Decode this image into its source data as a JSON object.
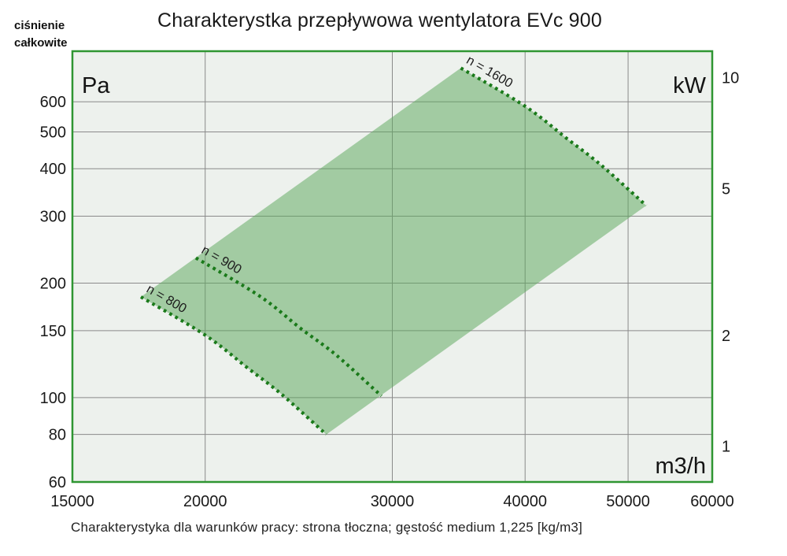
{
  "page": {
    "axis_caption": {
      "line1": "ciśnienie",
      "line2": "całkowite"
    },
    "title": "Charakterystka przepływowa wentylatora EVc 900",
    "footer_note": "Charakterystyka dla warunków pracy: strona tłoczna; gęstość medium 1,225 [kg/m3]"
  },
  "chart_data": {
    "type": "area",
    "title": "Charakterystka przepływowa wentylatora EVc 900",
    "x_axis": {
      "label": "m3/h",
      "scale": "log",
      "min": 15000,
      "max": 60000,
      "ticks": [
        15000,
        20000,
        30000,
        40000,
        50000,
        60000
      ],
      "gridlines": [
        20000,
        30000,
        40000,
        50000
      ]
    },
    "y_axis_left": {
      "label": "Pa",
      "scale": "log",
      "min": 60,
      "max": 815,
      "ticks": [
        600,
        500,
        400,
        300,
        200,
        150,
        100,
        80,
        60
      ],
      "gridlines": [
        600,
        500,
        400,
        300,
        200,
        150,
        100,
        80
      ]
    },
    "y_axis_right": {
      "label": "kW",
      "scale": "log",
      "min": 0.8,
      "max": 11.8,
      "ticks": [
        10,
        5,
        2,
        1
      ]
    },
    "series": [
      {
        "name": "n = 800",
        "points": [
          [
            17400,
            184
          ],
          [
            20000,
            146
          ],
          [
            21900,
            120
          ],
          [
            23600,
            102
          ],
          [
            26000,
            80
          ]
        ]
      },
      {
        "name": "n = 900",
        "points": [
          [
            19600,
            233
          ],
          [
            22500,
            185
          ],
          [
            24600,
            152
          ],
          [
            26600,
            129
          ],
          [
            29300,
            101
          ]
        ]
      },
      {
        "name": "n = 1600",
        "points": [
          [
            34800,
            736
          ],
          [
            40000,
            584
          ],
          [
            43800,
            480
          ],
          [
            47200,
            408
          ],
          [
            52000,
            320
          ]
        ]
      }
    ],
    "region": {
      "upper": "n = 1600",
      "lower": "n = 800"
    },
    "grid": true,
    "legend": "none",
    "colors": {
      "plot_bg": "#edf1ed",
      "region_fill": "rgba(93,168,93,0.52)",
      "grid_line": "#8a8a8a",
      "curve_dots": "#1a7a1a",
      "plot_border": "#2f9632",
      "text": "#1a1a1a"
    }
  }
}
